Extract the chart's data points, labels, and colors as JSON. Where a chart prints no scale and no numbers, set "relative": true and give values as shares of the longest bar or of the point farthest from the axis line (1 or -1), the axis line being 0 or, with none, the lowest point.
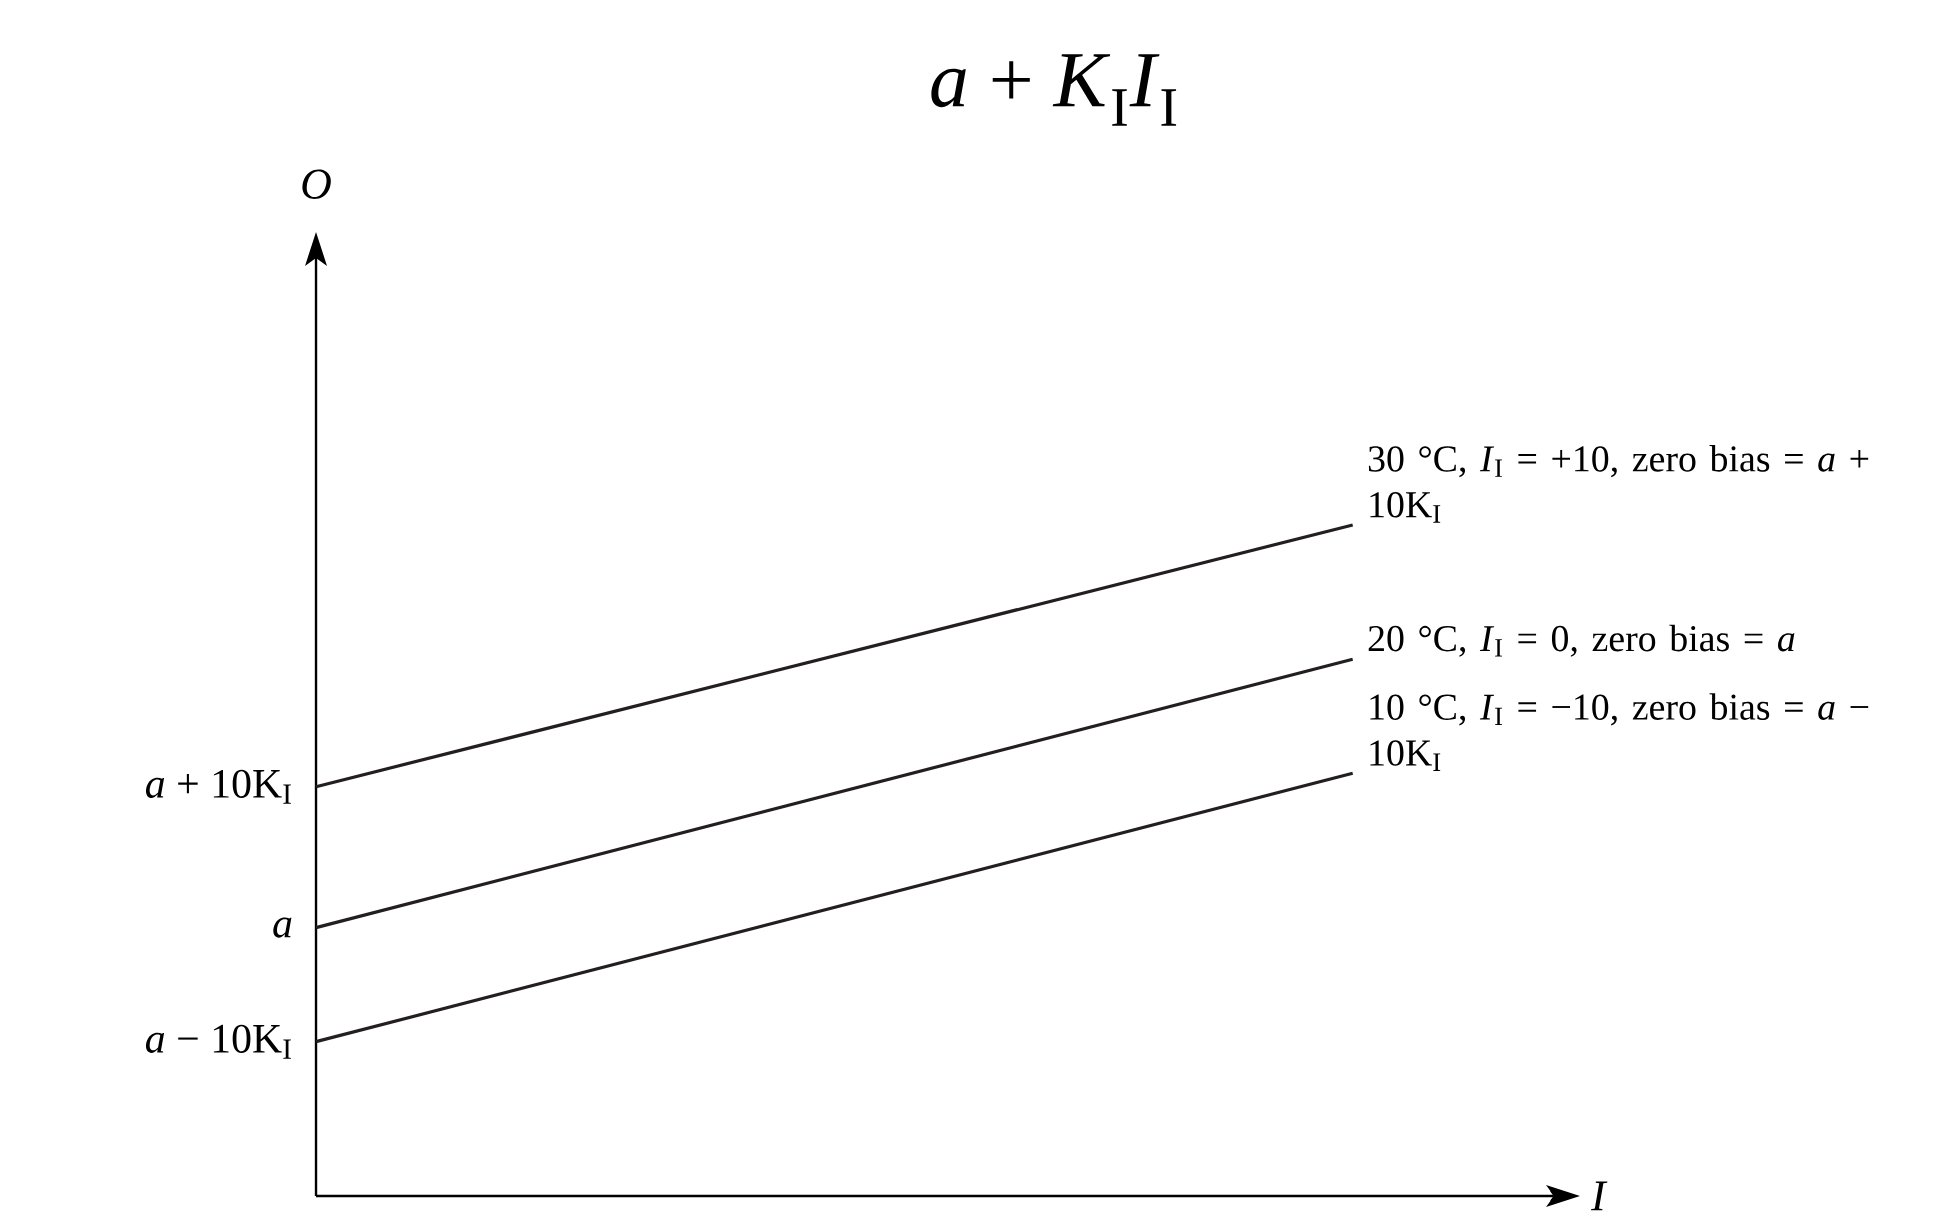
{
  "chart_data": {
    "type": "line",
    "title": "*a* + *K*$_{I}$*I*$_{I}$",
    "xlabel": "I",
    "relative": true,
    "categories": [
      null,
      null
    ],
    "series": [
      {
        "name": "30 °C, *I*$_{I}$ = +10, zero bias = *a* + 10K$_{I}$",
        "color": "#231f20",
        "values": [
          0.61,
          1.0
        ]
      },
      {
        "name": "20 °C, *I*$_{I}$ = 0, zero bias = *a*",
        "color": "#231f20",
        "values": [
          0.4,
          0.8
        ]
      },
      {
        "name": "10 °C, *I*$_{I}$ = −10, zero bias = *a* − 10K$_{I}$",
        "color": "#231f20",
        "values": [
          0.23,
          0.63
        ]
      }
    ],
    "annotations": [
      "*a* + 10K$_{I}$",
      "*a*",
      "*a* − 10K$_{I}$",
      "O"
    ]
  }
}
